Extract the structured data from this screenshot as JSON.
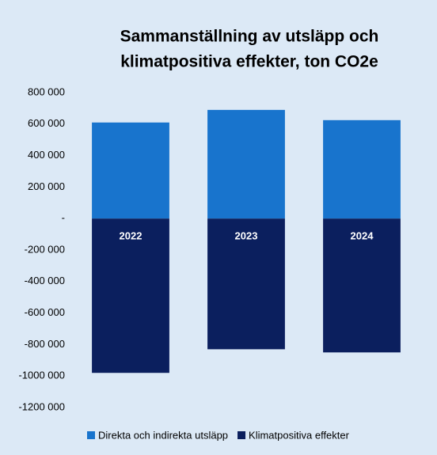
{
  "chart_data": {
    "type": "bar",
    "stacked": true,
    "title": [
      "Sammanställning av utsläpp och",
      "klimatpositiva effekter, ton CO2e"
    ],
    "categories": [
      "2022",
      "2023",
      "2024"
    ],
    "series": [
      {
        "name": "Direkta och indirekta utsläpp",
        "color": "#1874cd",
        "values": [
          610000,
          690000,
          625000
        ]
      },
      {
        "name": "Klimatpositiva effekter",
        "color": "#0b1f5e",
        "values": [
          -980000,
          -830000,
          -850000
        ]
      }
    ],
    "ylim": [
      -1200000,
      800000
    ],
    "yticks": [
      {
        "value": 800000,
        "label": "800 000"
      },
      {
        "value": 600000,
        "label": "600 000"
      },
      {
        "value": 400000,
        "label": "400 000"
      },
      {
        "value": 200000,
        "label": "200 000"
      },
      {
        "value": 0,
        "label": "-"
      },
      {
        "value": -200000,
        "label": "-200 000"
      },
      {
        "value": -400000,
        "label": "-400 000"
      },
      {
        "value": -600000,
        "label": "-600 000"
      },
      {
        "value": -800000,
        "label": "-800 000"
      },
      {
        "value": -1000000,
        "label": "-1000 000"
      },
      {
        "value": -1200000,
        "label": "-1200 000"
      }
    ],
    "grid": false,
    "legend": "bottom"
  }
}
